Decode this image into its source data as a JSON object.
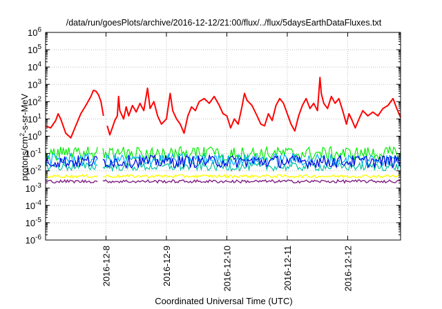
{
  "chart_data": {
    "type": "line",
    "title": "/data/run/goesPlots/archive/2016-12-12/21:00/flux/../flux/5daysEarthDataFluxes.txt",
    "xlabel": "Coordinated Universal Time (UTC)",
    "ylabel_parts": [
      "protons/cm",
      "2",
      "-s-sr-MeV"
    ],
    "yscale": "log",
    "ylim": [
      1e-06,
      1000000.0
    ],
    "y_ticks": [
      {
        "base": "10",
        "exp": "-6",
        "value": 1e-06
      },
      {
        "base": "10",
        "exp": "-5",
        "value": 1e-05
      },
      {
        "base": "10",
        "exp": "-4",
        "value": 0.0001
      },
      {
        "base": "10",
        "exp": "-3",
        "value": 0.001
      },
      {
        "base": "10",
        "exp": "-2",
        "value": 0.01
      },
      {
        "base": "10",
        "exp": "-1",
        "value": 0.1
      },
      {
        "base": "10",
        "exp": "0",
        "value": 1
      },
      {
        "base": "10",
        "exp": "1",
        "value": 10
      },
      {
        "base": "10",
        "exp": "2",
        "value": 100
      },
      {
        "base": "10",
        "exp": "3",
        "value": 1000
      },
      {
        "base": "10",
        "exp": "4",
        "value": 10000
      },
      {
        "base": "10",
        "exp": "5",
        "value": 100000
      },
      {
        "base": "10",
        "exp": "6",
        "value": 1000000
      }
    ],
    "xlim": [
      "2016-12-07T00:00",
      "2016-12-12T21:00"
    ],
    "x_ticks": [
      "2016-12-8",
      "2016-12-9",
      "2016-12-10",
      "2016-12-11",
      "2016-12-12"
    ],
    "x_tick_dates": [
      "2016-12-08T00:00",
      "2016-12-09T00:00",
      "2016-12-10T00:00",
      "2016-12-11T00:00",
      "2016-12-12T00:00"
    ],
    "grid": true,
    "series": [
      {
        "color": "#ff0000",
        "style": "highly variable proton flux",
        "points": [
          [
            "2016-12-07T00:00",
            4
          ],
          [
            "2016-12-07T02:00",
            3
          ],
          [
            "2016-12-07T04:00",
            8
          ],
          [
            "2016-12-07T05:00",
            20
          ],
          [
            "2016-12-07T06:00",
            10
          ],
          [
            "2016-12-07T08:00",
            1.5
          ],
          [
            "2016-12-07T10:00",
            0.8
          ],
          [
            "2016-12-07T12:00",
            4
          ],
          [
            "2016-12-07T14:00",
            20
          ],
          [
            "2016-12-07T16:00",
            60
          ],
          [
            "2016-12-07T18:00",
            200
          ],
          [
            "2016-12-07T19:00",
            450
          ],
          [
            "2016-12-07T20:00",
            400
          ],
          [
            "2016-12-07T21:00",
            250
          ],
          [
            "2016-12-07T22:00",
            100
          ],
          [
            "2016-12-07T23:00",
            15
          ],
          [
            "2016-12-08T00:00",
            null
          ],
          [
            "2016-12-08T00:30",
            4
          ],
          [
            "2016-12-08T01:30",
            1.2
          ],
          [
            "2016-12-08T02:30",
            3
          ],
          [
            "2016-12-08T03:30",
            8
          ],
          [
            "2016-12-08T04:30",
            15
          ],
          [
            "2016-12-08T05:00",
            200
          ],
          [
            "2016-12-08T05:30",
            30
          ],
          [
            "2016-12-08T07:00",
            10
          ],
          [
            "2016-12-08T08:00",
            50
          ],
          [
            "2016-12-08T09:00",
            15
          ],
          [
            "2016-12-08T10:30",
            60
          ],
          [
            "2016-12-08T12:00",
            25
          ],
          [
            "2016-12-08T13:30",
            80
          ],
          [
            "2016-12-08T15:00",
            30
          ],
          [
            "2016-12-08T16:30",
            600
          ],
          [
            "2016-12-08T17:30",
            40
          ],
          [
            "2016-12-08T19:00",
            100
          ],
          [
            "2016-12-08T20:30",
            15
          ],
          [
            "2016-12-08T22:00",
            5
          ],
          [
            "2016-12-09T00:00",
            10
          ],
          [
            "2016-12-09T01:30",
            300
          ],
          [
            "2016-12-09T02:30",
            30
          ],
          [
            "2016-12-09T04:00",
            10
          ],
          [
            "2016-12-09T05:30",
            5
          ],
          [
            "2016-12-09T07:00",
            1.5
          ],
          [
            "2016-12-09T08:30",
            15
          ],
          [
            "2016-12-09T10:00",
            50
          ],
          [
            "2016-12-09T11:30",
            30
          ],
          [
            "2016-12-09T13:00",
            100
          ],
          [
            "2016-12-09T15:00",
            150
          ],
          [
            "2016-12-09T17:00",
            80
          ],
          [
            "2016-12-09T19:00",
            200
          ],
          [
            "2016-12-09T21:00",
            60
          ],
          [
            "2016-12-09T22:30",
            20
          ],
          [
            "2016-12-10T00:00",
            15
          ],
          [
            "2016-12-10T01:30",
            3
          ],
          [
            "2016-12-10T03:00",
            10
          ],
          [
            "2016-12-10T04:30",
            5
          ],
          [
            "2016-12-10T06:00",
            50
          ],
          [
            "2016-12-10T07:00",
            300
          ],
          [
            "2016-12-10T08:00",
            120
          ],
          [
            "2016-12-10T10:00",
            60
          ],
          [
            "2016-12-10T12:00",
            15
          ],
          [
            "2016-12-10T13:30",
            5
          ],
          [
            "2016-12-10T15:00",
            4
          ],
          [
            "2016-12-10T16:30",
            20
          ],
          [
            "2016-12-10T18:00",
            8
          ],
          [
            "2016-12-10T19:30",
            60
          ],
          [
            "2016-12-10T21:00",
            150
          ],
          [
            "2016-12-10T22:30",
            80
          ],
          [
            "2016-12-11T00:00",
            20
          ],
          [
            "2016-12-11T01:30",
            5
          ],
          [
            "2016-12-11T03:00",
            2
          ],
          [
            "2016-12-11T04:30",
            15
          ],
          [
            "2016-12-11T06:00",
            60
          ],
          [
            "2016-12-11T07:30",
            150
          ],
          [
            "2016-12-11T09:00",
            40
          ],
          [
            "2016-12-11T10:30",
            80
          ],
          [
            "2016-12-11T12:00",
            30
          ],
          [
            "2016-12-11T13:00",
            2500
          ],
          [
            "2016-12-11T13:30",
            300
          ],
          [
            "2016-12-11T14:30",
            80
          ],
          [
            "2016-12-11T16:00",
            40
          ],
          [
            "2016-12-11T17:30",
            200
          ],
          [
            "2016-12-11T19:00",
            80
          ],
          [
            "2016-12-11T20:30",
            150
          ],
          [
            "2016-12-11T22:00",
            30
          ],
          [
            "2016-12-11T23:30",
            5
          ],
          [
            "2016-12-12T00:30",
            20
          ],
          [
            "2016-12-12T01:30",
            10
          ],
          [
            "2016-12-12T03:00",
            3
          ],
          [
            "2016-12-12T04:30",
            10
          ],
          [
            "2016-12-12T06:00",
            30
          ],
          [
            "2016-12-12T08:00",
            15
          ],
          [
            "2016-12-12T10:00",
            25
          ],
          [
            "2016-12-12T12:00",
            15
          ],
          [
            "2016-12-12T14:00",
            40
          ],
          [
            "2016-12-12T16:00",
            60
          ],
          [
            "2016-12-12T18:00",
            150
          ],
          [
            "2016-12-12T19:30",
            40
          ],
          [
            "2016-12-12T21:00",
            12
          ]
        ]
      },
      {
        "color": "#00ee00",
        "style": "noisy band",
        "level_range": [
          0.04,
          0.25
        ]
      },
      {
        "color": "#00aaff",
        "style": "noisy band",
        "level_range": [
          0.02,
          0.1
        ]
      },
      {
        "color": "#0000dd",
        "style": "noisy band",
        "level_range": [
          0.015,
          0.08
        ]
      },
      {
        "color": "#00c0a0",
        "style": "noisy band",
        "level_range": [
          0.01,
          0.03
        ]
      },
      {
        "color": "#ffff00",
        "style": "noisy band",
        "level_range": [
          0.004,
          0.006
        ]
      },
      {
        "color": "#802080",
        "style": "noisy band",
        "level_range": [
          0.002,
          0.003
        ]
      }
    ]
  }
}
